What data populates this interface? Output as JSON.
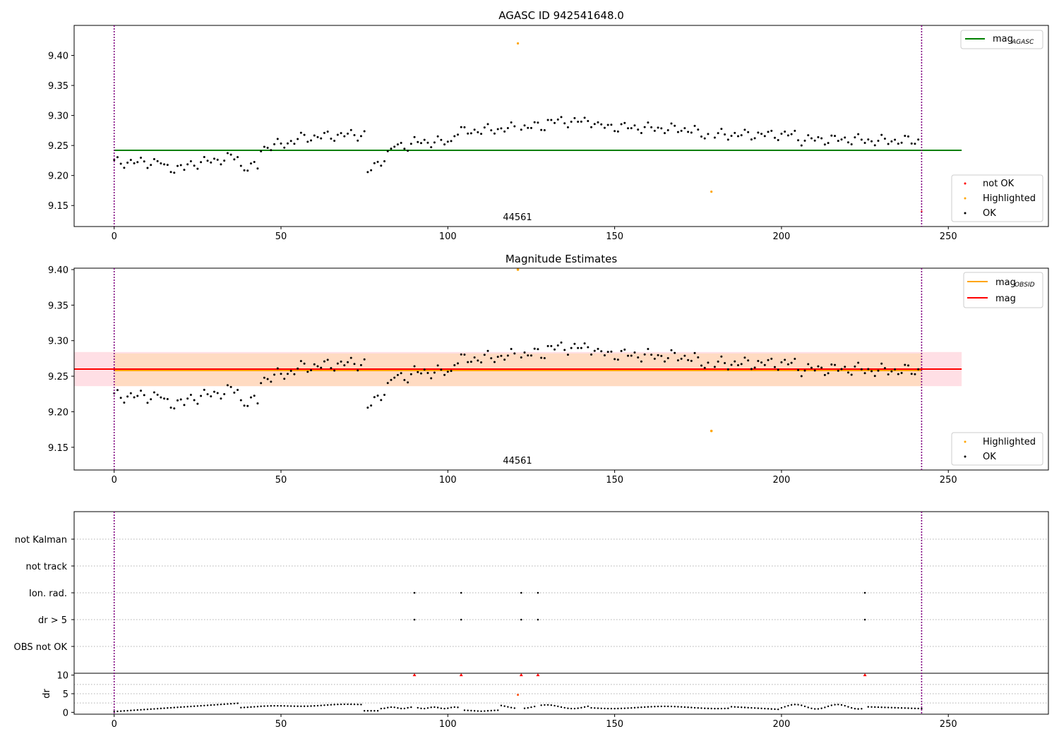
{
  "chart_data": [
    {
      "type": "scatter",
      "title": "AGASC ID 942541648.0",
      "xlim": [
        -12,
        280
      ],
      "ylim": [
        9.115,
        9.45
      ],
      "xticks": [
        "0",
        "50",
        "100",
        "150",
        "200",
        "250"
      ],
      "yticks": [
        "9.15",
        "9.20",
        "9.25",
        "9.30",
        "9.35",
        "9.40"
      ],
      "annotation": "44561",
      "vlines": [
        0,
        242
      ],
      "mag_agasc": 9.242,
      "legend_top": {
        "label": "mag",
        "subscript": "AGASC"
      },
      "legend_bottom": [
        "not OK",
        "Highlighted",
        "OK"
      ],
      "highlighted": [
        [
          121,
          9.42
        ],
        [
          179,
          9.173
        ]
      ],
      "not_ok": [
        [
          242,
          9.14
        ]
      ],
      "colors": {
        "ok": "#000000",
        "highlighted": "#ffa500",
        "not_ok": "#ff0000",
        "mag_agasc": "#008000",
        "vline": "#800080"
      }
    },
    {
      "type": "scatter",
      "title": "Magnitude Estimates",
      "xlim": [
        -12,
        280
      ],
      "ylim": [
        9.118,
        9.402
      ],
      "xticks": [
        "0",
        "50",
        "100",
        "150",
        "200",
        "250"
      ],
      "yticks": [
        "9.15",
        "9.20",
        "9.25",
        "9.30",
        "9.35",
        "9.40"
      ],
      "annotation": "44561",
      "vlines": [
        0,
        242
      ],
      "mag": 9.26,
      "mag_obsid": 9.258,
      "band_mag": [
        9.236,
        9.284
      ],
      "band_obsid": [
        9.236,
        9.282
      ],
      "legend_top": [
        {
          "label": "mag",
          "subscript": "OBSID"
        },
        {
          "label": "mag",
          "subscript": ""
        }
      ],
      "legend_bottom": [
        "Highlighted",
        "OK"
      ],
      "highlighted": [
        [
          121,
          9.4
        ],
        [
          179,
          9.173
        ]
      ],
      "colors": {
        "ok": "#000000",
        "highlighted": "#ffa500",
        "mag": "#ff0000",
        "mag_obsid": "#ffa500",
        "band_mag": "#ffc0cb",
        "band_obsid": "#ffdab9",
        "vline": "#800080"
      }
    },
    {
      "type": "scatter",
      "title": "",
      "xlim": [
        -12,
        280
      ],
      "flag_labels": [
        "not Kalman",
        "not track",
        "Ion. rad.",
        "dr > 5",
        "OBS not OK"
      ],
      "flag_points": {
        "Ion. rad.": [
          90,
          104,
          122,
          127,
          225
        ],
        "dr > 5": [
          90,
          104,
          122,
          127,
          225
        ]
      },
      "vlines": [
        0,
        242
      ]
    },
    {
      "type": "scatter",
      "title": "",
      "ylabel": "dr",
      "xlim": [
        -12,
        280
      ],
      "ylim": [
        -0.5,
        10.5
      ],
      "xticks": [
        "0",
        "50",
        "100",
        "150",
        "200",
        "250"
      ],
      "yticks": [
        "0",
        "5",
        "10"
      ],
      "vlines": [
        0,
        242
      ],
      "dr_high": [
        [
          90,
          10
        ],
        [
          104,
          10
        ],
        [
          122,
          10
        ],
        [
          127,
          10
        ],
        [
          225,
          10
        ]
      ],
      "dr_highlighted": [
        [
          121,
          4.7
        ]
      ],
      "colors": {
        "dr": "#000000",
        "dr_high": "#ff0000",
        "dr_highlighted": "#ff4500",
        "vline": "#800080"
      }
    }
  ]
}
